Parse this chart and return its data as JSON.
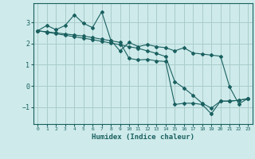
{
  "xlabel": "Humidex (Indice chaleur)",
  "bg_color": "#ceeaea",
  "grid_color": "#aacccc",
  "line_color": "#1a6060",
  "xlim": [
    -0.5,
    23.5
  ],
  "ylim": [
    -1.8,
    3.9
  ],
  "xticks": [
    0,
    1,
    2,
    3,
    4,
    5,
    6,
    7,
    8,
    9,
    10,
    11,
    12,
    13,
    14,
    15,
    16,
    17,
    18,
    19,
    20,
    21,
    22,
    23
  ],
  "yticks": [
    -1,
    0,
    1,
    2,
    3
  ],
  "line1_x": [
    0,
    1,
    2,
    3,
    4,
    5,
    6,
    7,
    8,
    9,
    10,
    11,
    12,
    13,
    14,
    15,
    16,
    17,
    18,
    19,
    20,
    21,
    22,
    23
  ],
  "line1_y": [
    2.6,
    2.85,
    2.65,
    2.85,
    3.35,
    2.95,
    2.75,
    3.5,
    2.15,
    1.65,
    2.05,
    1.85,
    1.95,
    1.85,
    1.8,
    1.65,
    1.8,
    1.55,
    1.5,
    1.45,
    1.4,
    -0.05,
    -0.85,
    -0.6
  ],
  "line2_x": [
    0,
    1,
    2,
    3,
    4,
    5,
    6,
    7,
    8,
    9,
    10,
    11,
    12,
    13,
    14,
    15,
    16,
    17,
    18,
    19,
    20,
    21,
    22,
    23
  ],
  "line2_y": [
    2.6,
    2.55,
    2.5,
    2.45,
    2.4,
    2.35,
    2.28,
    2.2,
    2.13,
    2.05,
    1.3,
    1.22,
    1.25,
    1.18,
    1.15,
    -0.88,
    -0.82,
    -0.82,
    -0.88,
    -1.32,
    -0.72,
    -0.72,
    -0.68,
    -0.6
  ],
  "line3_x": [
    0,
    1,
    2,
    3,
    4,
    5,
    6,
    7,
    8,
    9,
    10,
    11,
    12,
    13,
    14,
    15,
    16,
    17,
    18,
    19,
    20,
    21,
    22,
    23
  ],
  "line3_y": [
    2.6,
    2.53,
    2.46,
    2.39,
    2.32,
    2.25,
    2.18,
    2.1,
    2.02,
    1.94,
    1.85,
    1.77,
    1.65,
    1.53,
    1.38,
    0.2,
    -0.1,
    -0.45,
    -0.82,
    -1.05,
    -0.72,
    -0.72,
    -0.68,
    -0.6
  ]
}
